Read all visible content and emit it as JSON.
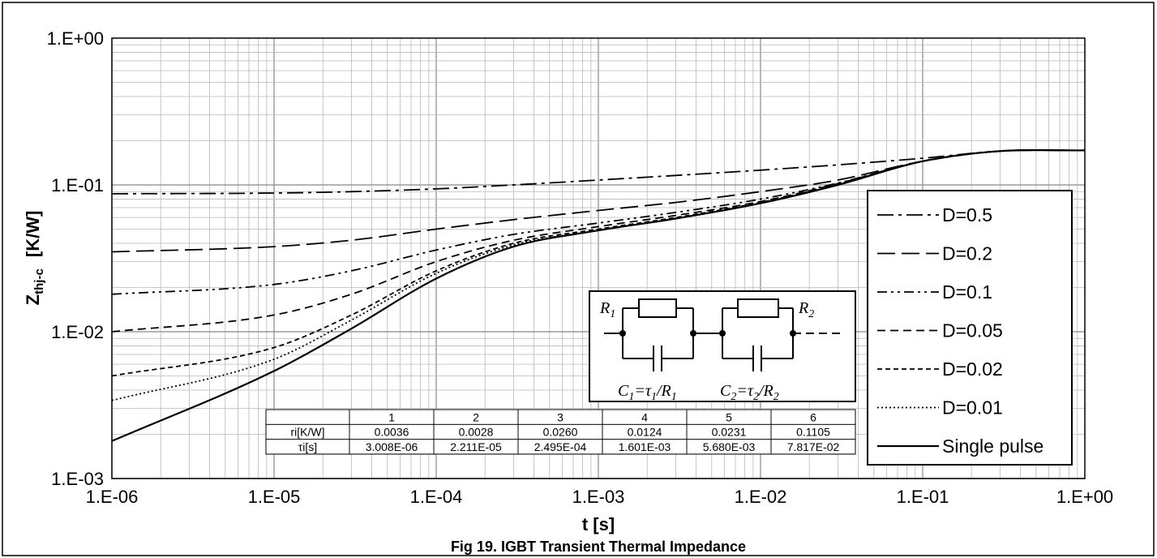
{
  "chart_data": {
    "type": "line",
    "title": "",
    "caption": "Fig 19. IGBT Transient Thermal Impedance",
    "xlabel": "t  [s]",
    "ylabel_main": "Z",
    "ylabel_sub": "thj-c",
    "ylabel_unit": "[K/W]",
    "x_scale": "log",
    "y_scale": "log",
    "xlim": [
      1e-06,
      1
    ],
    "ylim": [
      0.001,
      1
    ],
    "grid": true,
    "legend_position": "right",
    "x_ticks": [
      {
        "value": 1e-06,
        "label": "1.E-06"
      },
      {
        "value": 1e-05,
        "label": "1.E-05"
      },
      {
        "value": 0.0001,
        "label": "1.E-04"
      },
      {
        "value": 0.001,
        "label": "1.E-03"
      },
      {
        "value": 0.01,
        "label": "1.E-02"
      },
      {
        "value": 0.1,
        "label": "1.E-01"
      },
      {
        "value": 1,
        "label": "1.E+00"
      }
    ],
    "y_ticks": [
      {
        "value": 0.001,
        "label": "1.E-03"
      },
      {
        "value": 0.01,
        "label": "1.E-02"
      },
      {
        "value": 0.1,
        "label": "1.E-01"
      },
      {
        "value": 1,
        "label": "1.E+00"
      }
    ],
    "x": [
      1e-06,
      1e-05,
      3e-05,
      0.0001,
      0.0003,
      0.001,
      0.003,
      0.01,
      0.03,
      0.1,
      0.3,
      1
    ],
    "series": [
      {
        "name": "D=0.5",
        "dash": "20 6 4 6",
        "values": [
          0.087,
          0.088,
          0.09,
          0.094,
          0.1,
          0.108,
          0.116,
          0.126,
          0.137,
          0.152,
          0.17,
          0.172
        ]
      },
      {
        "name": "D=0.2",
        "dash": "22 8",
        "values": [
          0.035,
          0.038,
          0.042,
          0.05,
          0.058,
          0.067,
          0.076,
          0.09,
          0.108,
          0.145,
          0.17,
          0.172
        ]
      },
      {
        "name": "D=0.1",
        "dash": "12 5 3 5 3 5",
        "values": [
          0.018,
          0.021,
          0.026,
          0.036,
          0.046,
          0.055,
          0.065,
          0.08,
          0.103,
          0.145,
          0.17,
          0.172
        ]
      },
      {
        "name": "D=0.05",
        "dash": "10 6",
        "values": [
          0.01,
          0.013,
          0.018,
          0.03,
          0.042,
          0.052,
          0.062,
          0.077,
          0.102,
          0.145,
          0.17,
          0.172
        ]
      },
      {
        "name": "D=0.02",
        "dash": "6 4",
        "values": [
          0.005,
          0.0078,
          0.013,
          0.026,
          0.04,
          0.05,
          0.06,
          0.076,
          0.101,
          0.145,
          0.17,
          0.172
        ]
      },
      {
        "name": "D=0.01",
        "dash": "2 3",
        "values": [
          0.0034,
          0.0065,
          0.012,
          0.025,
          0.039,
          0.049,
          0.059,
          0.075,
          0.1,
          0.145,
          0.17,
          0.172
        ]
      },
      {
        "name": "Single pulse",
        "dash": "",
        "values": [
          0.0018,
          0.0054,
          0.0105,
          0.023,
          0.038,
          0.049,
          0.059,
          0.075,
          0.1,
          0.145,
          0.17,
          0.172
        ]
      }
    ],
    "table": {
      "headers": [
        "",
        "1",
        "2",
        "3",
        "4",
        "5",
        "6"
      ],
      "rows": [
        [
          "ri[K/W]",
          "0.0036",
          "0.0028",
          "0.0260",
          "0.0124",
          "0.0231",
          "0.1105"
        ],
        [
          "τi[s]",
          "3.008E-06",
          "2.211E-05",
          "2.495E-04",
          "1.601E-03",
          "5.680E-03",
          "7.817E-02"
        ]
      ]
    },
    "circuit": {
      "r1": "R",
      "r1_sub": "1",
      "r2": "R",
      "r2_sub": "2",
      "c1": "C",
      "c1_sub": "1",
      "c1_eq": "=τ",
      "c1_eq_sub": "1",
      "c1_div": "/R",
      "c1_div_sub": "1",
      "c2": "C",
      "c2_sub": "2",
      "c2_eq": "=τ",
      "c2_eq_sub": "2",
      "c2_div": "/R",
      "c2_div_sub": "2"
    }
  }
}
